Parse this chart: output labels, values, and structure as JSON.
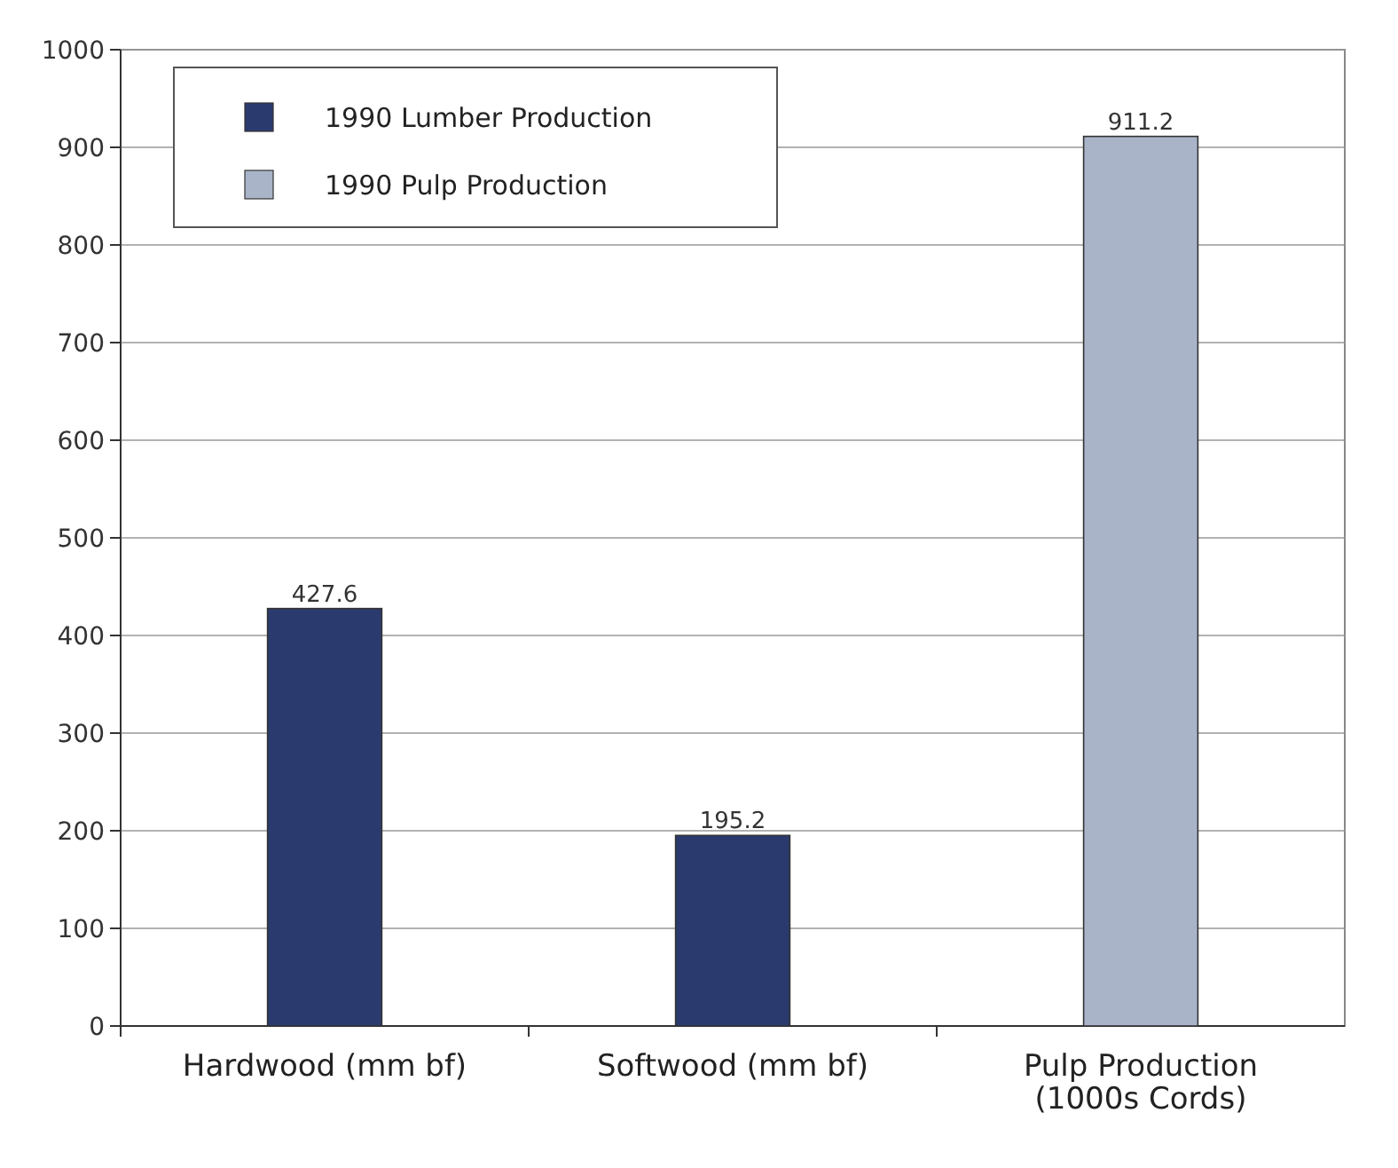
{
  "chart_data": {
    "type": "bar",
    "categories": [
      "Hardwood (mm bf)",
      "Softwood (mm bf)",
      "Pulp Production (1000s Cords)"
    ],
    "series": [
      {
        "name": "1990 Lumber Production",
        "color": "#2b3a6e",
        "values": [
          427.6,
          195.2,
          null
        ]
      },
      {
        "name": "1990 Pulp Production",
        "color": "#a9b4c8",
        "values": [
          null,
          null,
          911.2
        ]
      }
    ],
    "ylim": [
      0,
      1000
    ],
    "yticks": [
      0,
      100,
      200,
      300,
      400,
      500,
      600,
      700,
      800,
      900,
      1000
    ],
    "grid": "y",
    "legend": "top left",
    "data_labels": true
  }
}
